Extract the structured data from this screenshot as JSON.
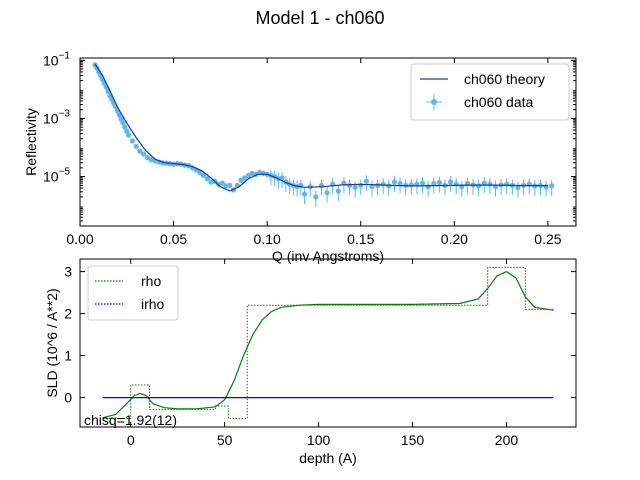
{
  "figure": {
    "title": "Model 1 - ch060",
    "chisq_label": "chisq=1.92(12)"
  },
  "colors": {
    "theory": "#1f3a93",
    "data": "#5bb8f5",
    "rho": "#008000",
    "irho": "#0000ff",
    "axis": "#000000"
  },
  "chart_data": [
    {
      "type": "scatter",
      "title": "",
      "xlabel": "Q (inv Angstroms)",
      "ylabel": "Reflectivity",
      "xlim": [
        0.0,
        0.265
      ],
      "ylim": [
        2e-07,
        0.12
      ],
      "yscale": "log",
      "xticks": [
        0.0,
        0.05,
        0.1,
        0.15,
        0.2,
        0.25
      ],
      "xtick_labels": [
        "0.00",
        "0.05",
        "0.10",
        "0.15",
        "0.20",
        "0.25"
      ],
      "yticks": [
        1e-05,
        0.001,
        0.1
      ],
      "ytick_labels": [
        {
          "base": "10",
          "exp": "−5"
        },
        {
          "base": "10",
          "exp": "−3"
        },
        {
          "base": "10",
          "exp": "−1"
        }
      ],
      "grid": false,
      "legend_position": "top-right",
      "series": [
        {
          "name": "ch060 theory",
          "kind": "line",
          "x": [
            0.008,
            0.012,
            0.016,
            0.02,
            0.025,
            0.03,
            0.035,
            0.04,
            0.045,
            0.05,
            0.055,
            0.06,
            0.065,
            0.07,
            0.075,
            0.08,
            0.085,
            0.09,
            0.095,
            0.1,
            0.105,
            0.11,
            0.115,
            0.12,
            0.13,
            0.14,
            0.15,
            0.16,
            0.17,
            0.18,
            0.19,
            0.2,
            0.21,
            0.22,
            0.23,
            0.24,
            0.25
          ],
          "y": [
            0.075,
            0.03,
            0.009,
            0.0025,
            0.0007,
            0.00022,
            8e-05,
            4e-05,
            3e-05,
            2.8e-05,
            2.6e-05,
            2.2e-05,
            1.6e-05,
            9e-06,
            4.5e-06,
            3.2e-06,
            4.5e-06,
            8.5e-06,
            1.2e-05,
            1.2e-05,
            9e-06,
            6.2e-06,
            4.8e-06,
            4.3e-06,
            4.5e-06,
            5.2e-06,
            5.4e-06,
            5.2e-06,
            4.9e-06,
            4.8e-06,
            4.9e-06,
            5e-06,
            5.1e-06,
            5.1e-06,
            5e-06,
            4.9e-06,
            4.9e-06
          ]
        },
        {
          "name": "ch060 data",
          "kind": "errorbar",
          "x": [
            0.008,
            0.009,
            0.01,
            0.011,
            0.012,
            0.013,
            0.014,
            0.015,
            0.016,
            0.017,
            0.018,
            0.019,
            0.02,
            0.021,
            0.022,
            0.023,
            0.024,
            0.025,
            0.026,
            0.028,
            0.03,
            0.032,
            0.034,
            0.036,
            0.038,
            0.04,
            0.042,
            0.044,
            0.046,
            0.048,
            0.05,
            0.052,
            0.054,
            0.056,
            0.058,
            0.06,
            0.062,
            0.064,
            0.066,
            0.068,
            0.07,
            0.072,
            0.074,
            0.076,
            0.078,
            0.08,
            0.082,
            0.084,
            0.086,
            0.088,
            0.09,
            0.092,
            0.094,
            0.096,
            0.098,
            0.1,
            0.102,
            0.104,
            0.106,
            0.108,
            0.11,
            0.112,
            0.114,
            0.116,
            0.118,
            0.12,
            0.123,
            0.126,
            0.129,
            0.132,
            0.135,
            0.138,
            0.141,
            0.144,
            0.147,
            0.15,
            0.153,
            0.156,
            0.159,
            0.162,
            0.165,
            0.168,
            0.171,
            0.174,
            0.177,
            0.18,
            0.183,
            0.186,
            0.189,
            0.192,
            0.195,
            0.198,
            0.201,
            0.204,
            0.207,
            0.21,
            0.213,
            0.216,
            0.219,
            0.222,
            0.225,
            0.228,
            0.231,
            0.234,
            0.237,
            0.24,
            0.243,
            0.246,
            0.249,
            0.252
          ],
          "y": [
            0.07,
            0.055,
            0.04,
            0.03,
            0.022,
            0.016,
            0.012,
            0.0085,
            0.006,
            0.0045,
            0.0033,
            0.0025,
            0.0018,
            0.0013,
            0.00095,
            0.0007,
            0.0005,
            0.00036,
            0.00027,
            0.00017,
            0.00011,
            7.5e-05,
            6e-05,
            4.5e-05,
            3.8e-05,
            3.5e-05,
            3.2e-05,
            3e-05,
            2.9e-05,
            2.8e-05,
            2.7e-05,
            2.8e-05,
            2.7e-05,
            2.5e-05,
            2.4e-05,
            2e-05,
            1.7e-05,
            1.4e-05,
            1.1e-05,
            8.5e-06,
            6.5e-06,
            7e-06,
            5.5e-06,
            6e-06,
            4.8e-06,
            5e-06,
            3.5e-06,
            5e-06,
            7.5e-06,
            9e-06,
            1.1e-05,
            1.3e-05,
            1.2e-05,
            1.4e-05,
            1.3e-05,
            1.2e-05,
            1.1e-05,
            1e-05,
            8.5e-06,
            9e-06,
            6.5e-06,
            5.5e-06,
            5e-06,
            4.5e-06,
            5e-06,
            2.5e-06,
            4.5e-06,
            2e-06,
            5e-06,
            2.8e-06,
            5.5e-06,
            3.2e-06,
            6e-06,
            5e-06,
            4.2e-06,
            5e-06,
            7e-06,
            4.5e-06,
            5e-06,
            5.5e-06,
            4.8e-06,
            6.5e-06,
            5.8e-06,
            5e-06,
            5.2e-06,
            5.5e-06,
            6e-06,
            4.5e-06,
            5.8e-06,
            6.2e-06,
            5e-06,
            6.5e-06,
            5.5e-06,
            4.5e-06,
            5.8e-06,
            5.2e-06,
            4.8e-06,
            6e-06,
            5.5e-06,
            4.5e-06,
            5.2e-06,
            5.5e-06,
            5e-06,
            4.2e-06,
            5e-06,
            5.5e-06,
            4.8e-06,
            5e-06,
            4.5e-06,
            4.8e-06
          ]
        }
      ]
    },
    {
      "type": "line",
      "title": "",
      "xlabel": "depth (A)",
      "ylabel": "SLD (10^6 / A**2)",
      "xlim": [
        -27,
        237
      ],
      "ylim": [
        -0.7,
        3.3
      ],
      "xticks": [
        0,
        50,
        100,
        150,
        200
      ],
      "xtick_labels": [
        "0",
        "50",
        "100",
        "150",
        "200"
      ],
      "yticks": [
        0,
        1,
        2,
        3
      ],
      "ytick_labels": [
        "0",
        "1",
        "2",
        "3"
      ],
      "grid": false,
      "legend_position": "top-left",
      "series": [
        {
          "name": "rho",
          "kind": "step",
          "x": [
            -15,
            0,
            0,
            10,
            10,
            45,
            45,
            52,
            52,
            62,
            62,
            190,
            190,
            200,
            200,
            210,
            210,
            225
          ],
          "y": [
            -0.5,
            -0.5,
            0.3,
            0.3,
            -0.28,
            -0.28,
            -0.2,
            -0.2,
            -0.5,
            -0.5,
            2.2,
            2.2,
            3.1,
            3.1,
            3.1,
            3.1,
            2.1,
            2.1
          ]
        },
        {
          "name": "rho",
          "kind": "smooth",
          "x": [
            -15,
            -8,
            -3,
            2,
            5,
            8,
            12,
            18,
            25,
            35,
            45,
            50,
            55,
            60,
            65,
            70,
            75,
            80,
            90,
            100,
            120,
            150,
            175,
            185,
            190,
            195,
            200,
            205,
            210,
            215,
            225
          ],
          "y": [
            -0.48,
            -0.4,
            -0.18,
            0.05,
            0.1,
            0.05,
            -0.15,
            -0.24,
            -0.27,
            -0.27,
            -0.22,
            -0.05,
            0.4,
            1.0,
            1.5,
            1.85,
            2.05,
            2.15,
            2.2,
            2.22,
            2.22,
            2.22,
            2.24,
            2.35,
            2.6,
            2.9,
            3.0,
            2.85,
            2.4,
            2.15,
            2.08
          ]
        },
        {
          "name": "irho",
          "kind": "line",
          "x": [
            -15,
            225
          ],
          "y": [
            0,
            0
          ]
        }
      ]
    }
  ]
}
